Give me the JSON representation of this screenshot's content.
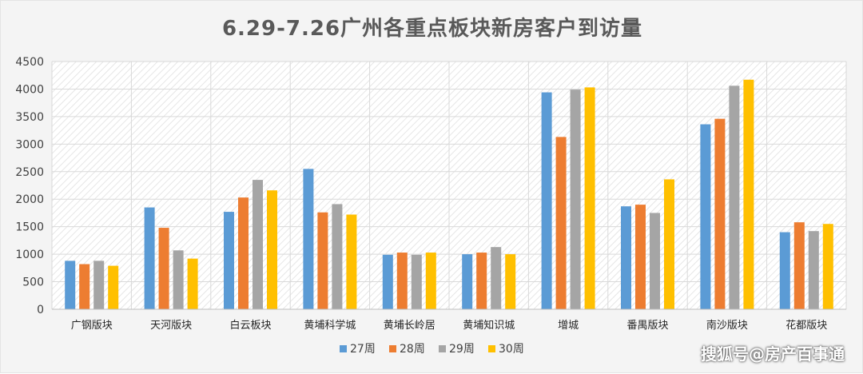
{
  "title": "6.29-7.26广州各重点板块新房客户到访量",
  "watermark": "搜狐号@房产百事通",
  "colors": {
    "27周": "#5b9bd5",
    "28周": "#ed7d31",
    "29周": "#a5a5a5",
    "30周": "#ffc000",
    "grid": "#d9d9d9",
    "hatch": "#e6e6e6"
  },
  "chart_data": {
    "type": "bar",
    "title": "6.29-7.26广州各重点板块新房客户到访量",
    "xlabel": "",
    "ylabel": "",
    "ylim": [
      0,
      4500
    ],
    "yticks": [
      0,
      500,
      1000,
      1500,
      2000,
      2500,
      3000,
      3500,
      4000,
      4500
    ],
    "grid": true,
    "legend_position": "bottom",
    "categories": [
      "广钢版块",
      "天河版块",
      "白云板块",
      "黄埔科学城",
      "黄埔长岭居",
      "黄埔知识城",
      "增城",
      "番禺版块",
      "南沙版块",
      "花都版块"
    ],
    "series": [
      {
        "name": "27周",
        "values": [
          880,
          1850,
          1770,
          2550,
          990,
          1000,
          3940,
          1870,
          3360,
          1400
        ]
      },
      {
        "name": "28周",
        "values": [
          820,
          1480,
          2030,
          1760,
          1030,
          1030,
          3130,
          1900,
          3460,
          1580
        ]
      },
      {
        "name": "29周",
        "values": [
          880,
          1070,
          2350,
          1910,
          990,
          1130,
          3990,
          1750,
          4060,
          1420
        ]
      },
      {
        "name": "30周",
        "values": [
          790,
          920,
          2160,
          1720,
          1030,
          1000,
          4030,
          2360,
          4170,
          1550
        ]
      }
    ]
  }
}
